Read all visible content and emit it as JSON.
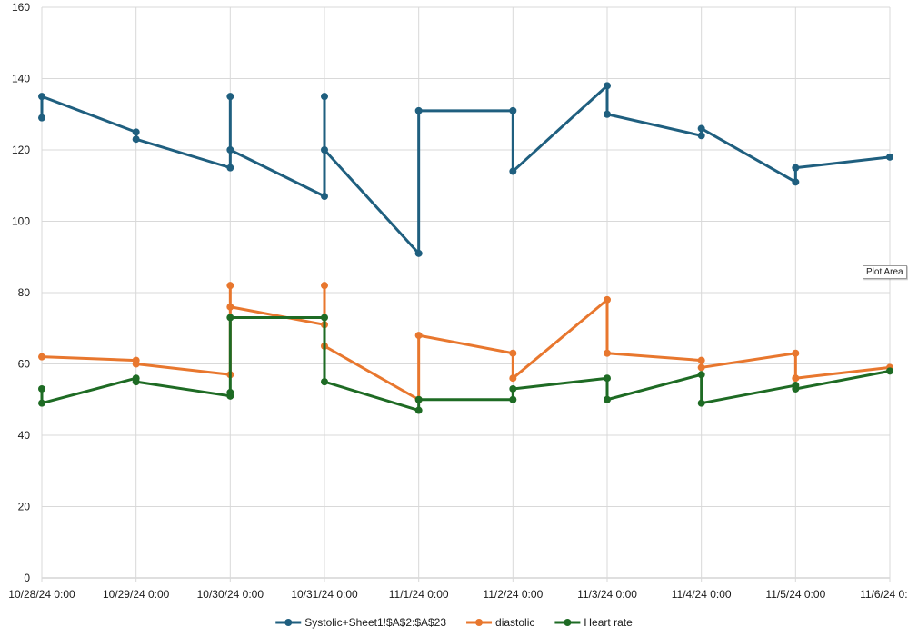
{
  "tooltip": "Plot Area",
  "chart_data": {
    "type": "line",
    "ylim": [
      0,
      160
    ],
    "y_ticks": [
      0,
      20,
      40,
      60,
      80,
      100,
      120,
      140,
      160
    ],
    "x_ticks": [
      "10/28/24 0:00",
      "10/29/24 0:00",
      "10/30/24 0:00",
      "10/31/24 0:00",
      "11/1/24 0:00",
      "11/2/24 0:00",
      "11/3/24 0:00",
      "11/4/24 0:00",
      "11/5/24 0:00",
      "11/6/24 0:00"
    ],
    "grid": true,
    "legend_position": "bottom",
    "series": [
      {
        "name": "Systolic+Sheet1!$A$2:$A$23",
        "color": "#1f5f7f",
        "points": [
          [
            "10/28/24",
            129
          ],
          [
            "10/28/24",
            135
          ],
          [
            "10/29/24",
            125
          ],
          [
            "10/29/24",
            123
          ],
          [
            "10/30/24",
            115
          ],
          [
            "10/30/24",
            135
          ],
          [
            "10/30/24",
            120
          ],
          [
            "10/31/24",
            107
          ],
          [
            "10/31/24",
            135
          ],
          [
            "10/31/24",
            120
          ],
          [
            "11/1/24",
            91
          ],
          [
            "11/1/24",
            131
          ],
          [
            "11/2/24",
            131
          ],
          [
            "11/2/24",
            114
          ],
          [
            "11/3/24",
            138
          ],
          [
            "11/3/24",
            130
          ],
          [
            "11/4/24",
            124
          ],
          [
            "11/4/24",
            126
          ],
          [
            "11/5/24",
            111
          ],
          [
            "11/5/24",
            115
          ],
          [
            "11/6/24",
            118
          ]
        ]
      },
      {
        "name": "diastolic",
        "color": "#e8772e",
        "points": [
          [
            "10/28/24",
            62
          ],
          [
            "10/29/24",
            61
          ],
          [
            "10/29/24",
            60
          ],
          [
            "10/30/24",
            57
          ],
          [
            "10/30/24",
            82
          ],
          [
            "10/30/24",
            76
          ],
          [
            "10/31/24",
            71
          ],
          [
            "10/31/24",
            82
          ],
          [
            "10/31/24",
            65
          ],
          [
            "11/1/24",
            50
          ],
          [
            "11/1/24",
            68
          ],
          [
            "11/2/24",
            63
          ],
          [
            "11/2/24",
            56
          ],
          [
            "11/3/24",
            78
          ],
          [
            "11/3/24",
            63
          ],
          [
            "11/4/24",
            61
          ],
          [
            "11/4/24",
            59
          ],
          [
            "11/5/24",
            63
          ],
          [
            "11/5/24",
            56
          ],
          [
            "11/6/24",
            59
          ]
        ]
      },
      {
        "name": "Heart rate",
        "color": "#1e6b24",
        "points": [
          [
            "10/28/24",
            53
          ],
          [
            "10/28/24",
            49
          ],
          [
            "10/29/24",
            56
          ],
          [
            "10/29/24",
            55
          ],
          [
            "10/30/24",
            51
          ],
          [
            "10/30/24",
            52
          ],
          [
            "10/30/24",
            73
          ],
          [
            "10/31/24",
            73
          ],
          [
            "10/31/24",
            55
          ],
          [
            "11/1/24",
            47
          ],
          [
            "11/1/24",
            50
          ],
          [
            "11/2/24",
            50
          ],
          [
            "11/2/24",
            53
          ],
          [
            "11/3/24",
            56
          ],
          [
            "11/3/24",
            50
          ],
          [
            "11/4/24",
            57
          ],
          [
            "11/4/24",
            49
          ],
          [
            "11/5/24",
            54
          ],
          [
            "11/5/24",
            53
          ],
          [
            "11/6/24",
            58
          ]
        ]
      }
    ]
  }
}
